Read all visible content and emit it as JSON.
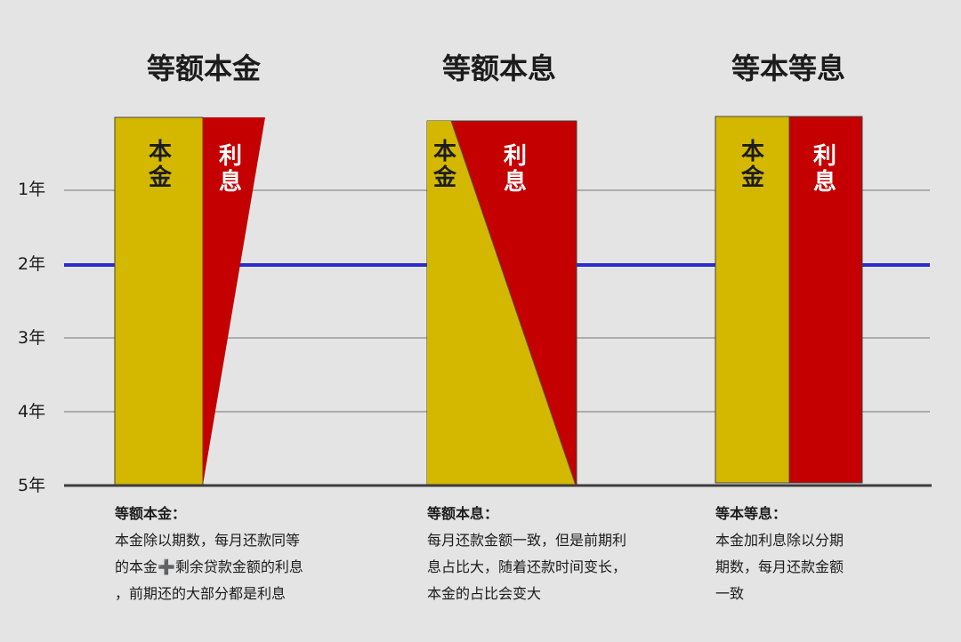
{
  "colors": {
    "background": "#e4e4e4",
    "principal": "#d4b800",
    "interest": "#c40000",
    "highlight_line": "#2b2bd0",
    "grid_line": "#9a9a9a",
    "baseline": "#3c3c3c"
  },
  "y_axis": {
    "labels": [
      "1年",
      "2年",
      "3年",
      "4年",
      "5年"
    ],
    "highlighted": "2年"
  },
  "panels": [
    {
      "title": "等额本金",
      "principal_label": "本金",
      "interest_label": "利息",
      "description": {
        "heading": "等额本金：",
        "lines": [
          "本金除以期数，每月还款同等",
          "的本金➕剩余贷款金额的利息",
          "，前期还的大部分都是利息"
        ]
      }
    },
    {
      "title": "等额本息",
      "principal_label": "本金",
      "interest_label": "利息",
      "description": {
        "heading": "等额本息：",
        "lines": [
          "每月还款金额一致，但是前期利",
          "息占比大，随着还款时间变长，",
          "本金的占比会变大"
        ]
      }
    },
    {
      "title": "等本等息",
      "principal_label": "本金",
      "interest_label": "利息",
      "description": {
        "heading": "等本等息：",
        "lines": [
          "本金加利息除以分期",
          "期数，每月还款金额",
          "一致"
        ]
      }
    }
  ]
}
